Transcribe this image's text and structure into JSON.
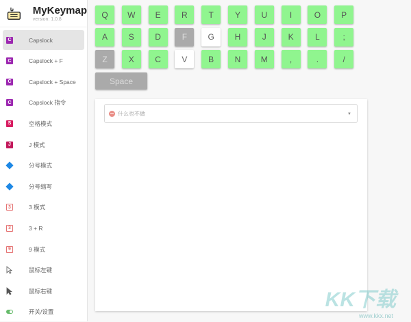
{
  "app": {
    "title": "MyKeymap",
    "version": "version: 1.0.8"
  },
  "sidebar": {
    "items": [
      {
        "label": "Capslock",
        "icon": "C",
        "color": "#9c27b0",
        "active": true
      },
      {
        "label": "Capslock + F",
        "icon": "C",
        "color": "#9c27b0"
      },
      {
        "label": "Capslock + Space",
        "icon": "C",
        "color": "#9c27b0"
      },
      {
        "label": "Capslock 指令",
        "icon": "C",
        "color": "#9c27b0"
      },
      {
        "label": "空格模式",
        "icon": "S",
        "color": "#d81b60"
      },
      {
        "label": "J 模式",
        "icon": "J",
        "color": "#c2185b"
      },
      {
        "label": "分号模式",
        "icon": "diamond",
        "color": "#1e88e5"
      },
      {
        "label": "分号缩写",
        "icon": "diamond",
        "color": "#1e88e5"
      },
      {
        "label": "3 模式",
        "icon": "3",
        "color": "#e57373"
      },
      {
        "label": "3 + R",
        "icon": "3",
        "color": "#e57373"
      },
      {
        "label": "9 模式",
        "icon": "9",
        "color": "#e57373"
      },
      {
        "label": "鼠标左键",
        "icon": "cursor-outline",
        "color": "#555555"
      },
      {
        "label": "鼠标右键",
        "icon": "cursor-filled",
        "color": "#555555"
      },
      {
        "label": "开关/设置",
        "icon": "toggle",
        "color": "#66bb6a"
      }
    ]
  },
  "keyboard": {
    "rows": [
      [
        {
          "k": "Q"
        },
        {
          "k": "W"
        },
        {
          "k": "E"
        },
        {
          "k": "R"
        },
        {
          "k": "T"
        },
        {
          "k": "Y"
        },
        {
          "k": "U"
        },
        {
          "k": "I"
        },
        {
          "k": "O"
        },
        {
          "k": "P"
        }
      ],
      [
        {
          "k": "A"
        },
        {
          "k": "S"
        },
        {
          "k": "D"
        },
        {
          "k": "F",
          "s": "gray"
        },
        {
          "k": "G",
          "s": "white"
        },
        {
          "k": "H"
        },
        {
          "k": "J"
        },
        {
          "k": "K"
        },
        {
          "k": "L"
        },
        {
          "k": ";"
        }
      ],
      [
        {
          "k": "Z",
          "s": "gray"
        },
        {
          "k": "X"
        },
        {
          "k": "C"
        },
        {
          "k": "V",
          "s": "white"
        },
        {
          "k": "B"
        },
        {
          "k": "N"
        },
        {
          "k": "M"
        },
        {
          "k": ","
        },
        {
          "k": "."
        },
        {
          "k": "/"
        }
      ]
    ],
    "space": "Space",
    "colors": {
      "mapped": "#90f58f",
      "disabled": "#aaaaaa",
      "selected": "#ffffff"
    }
  },
  "action": {
    "selected": "什么也不做"
  },
  "watermark": {
    "text": "KK下载",
    "url": "www.kkx.net"
  }
}
